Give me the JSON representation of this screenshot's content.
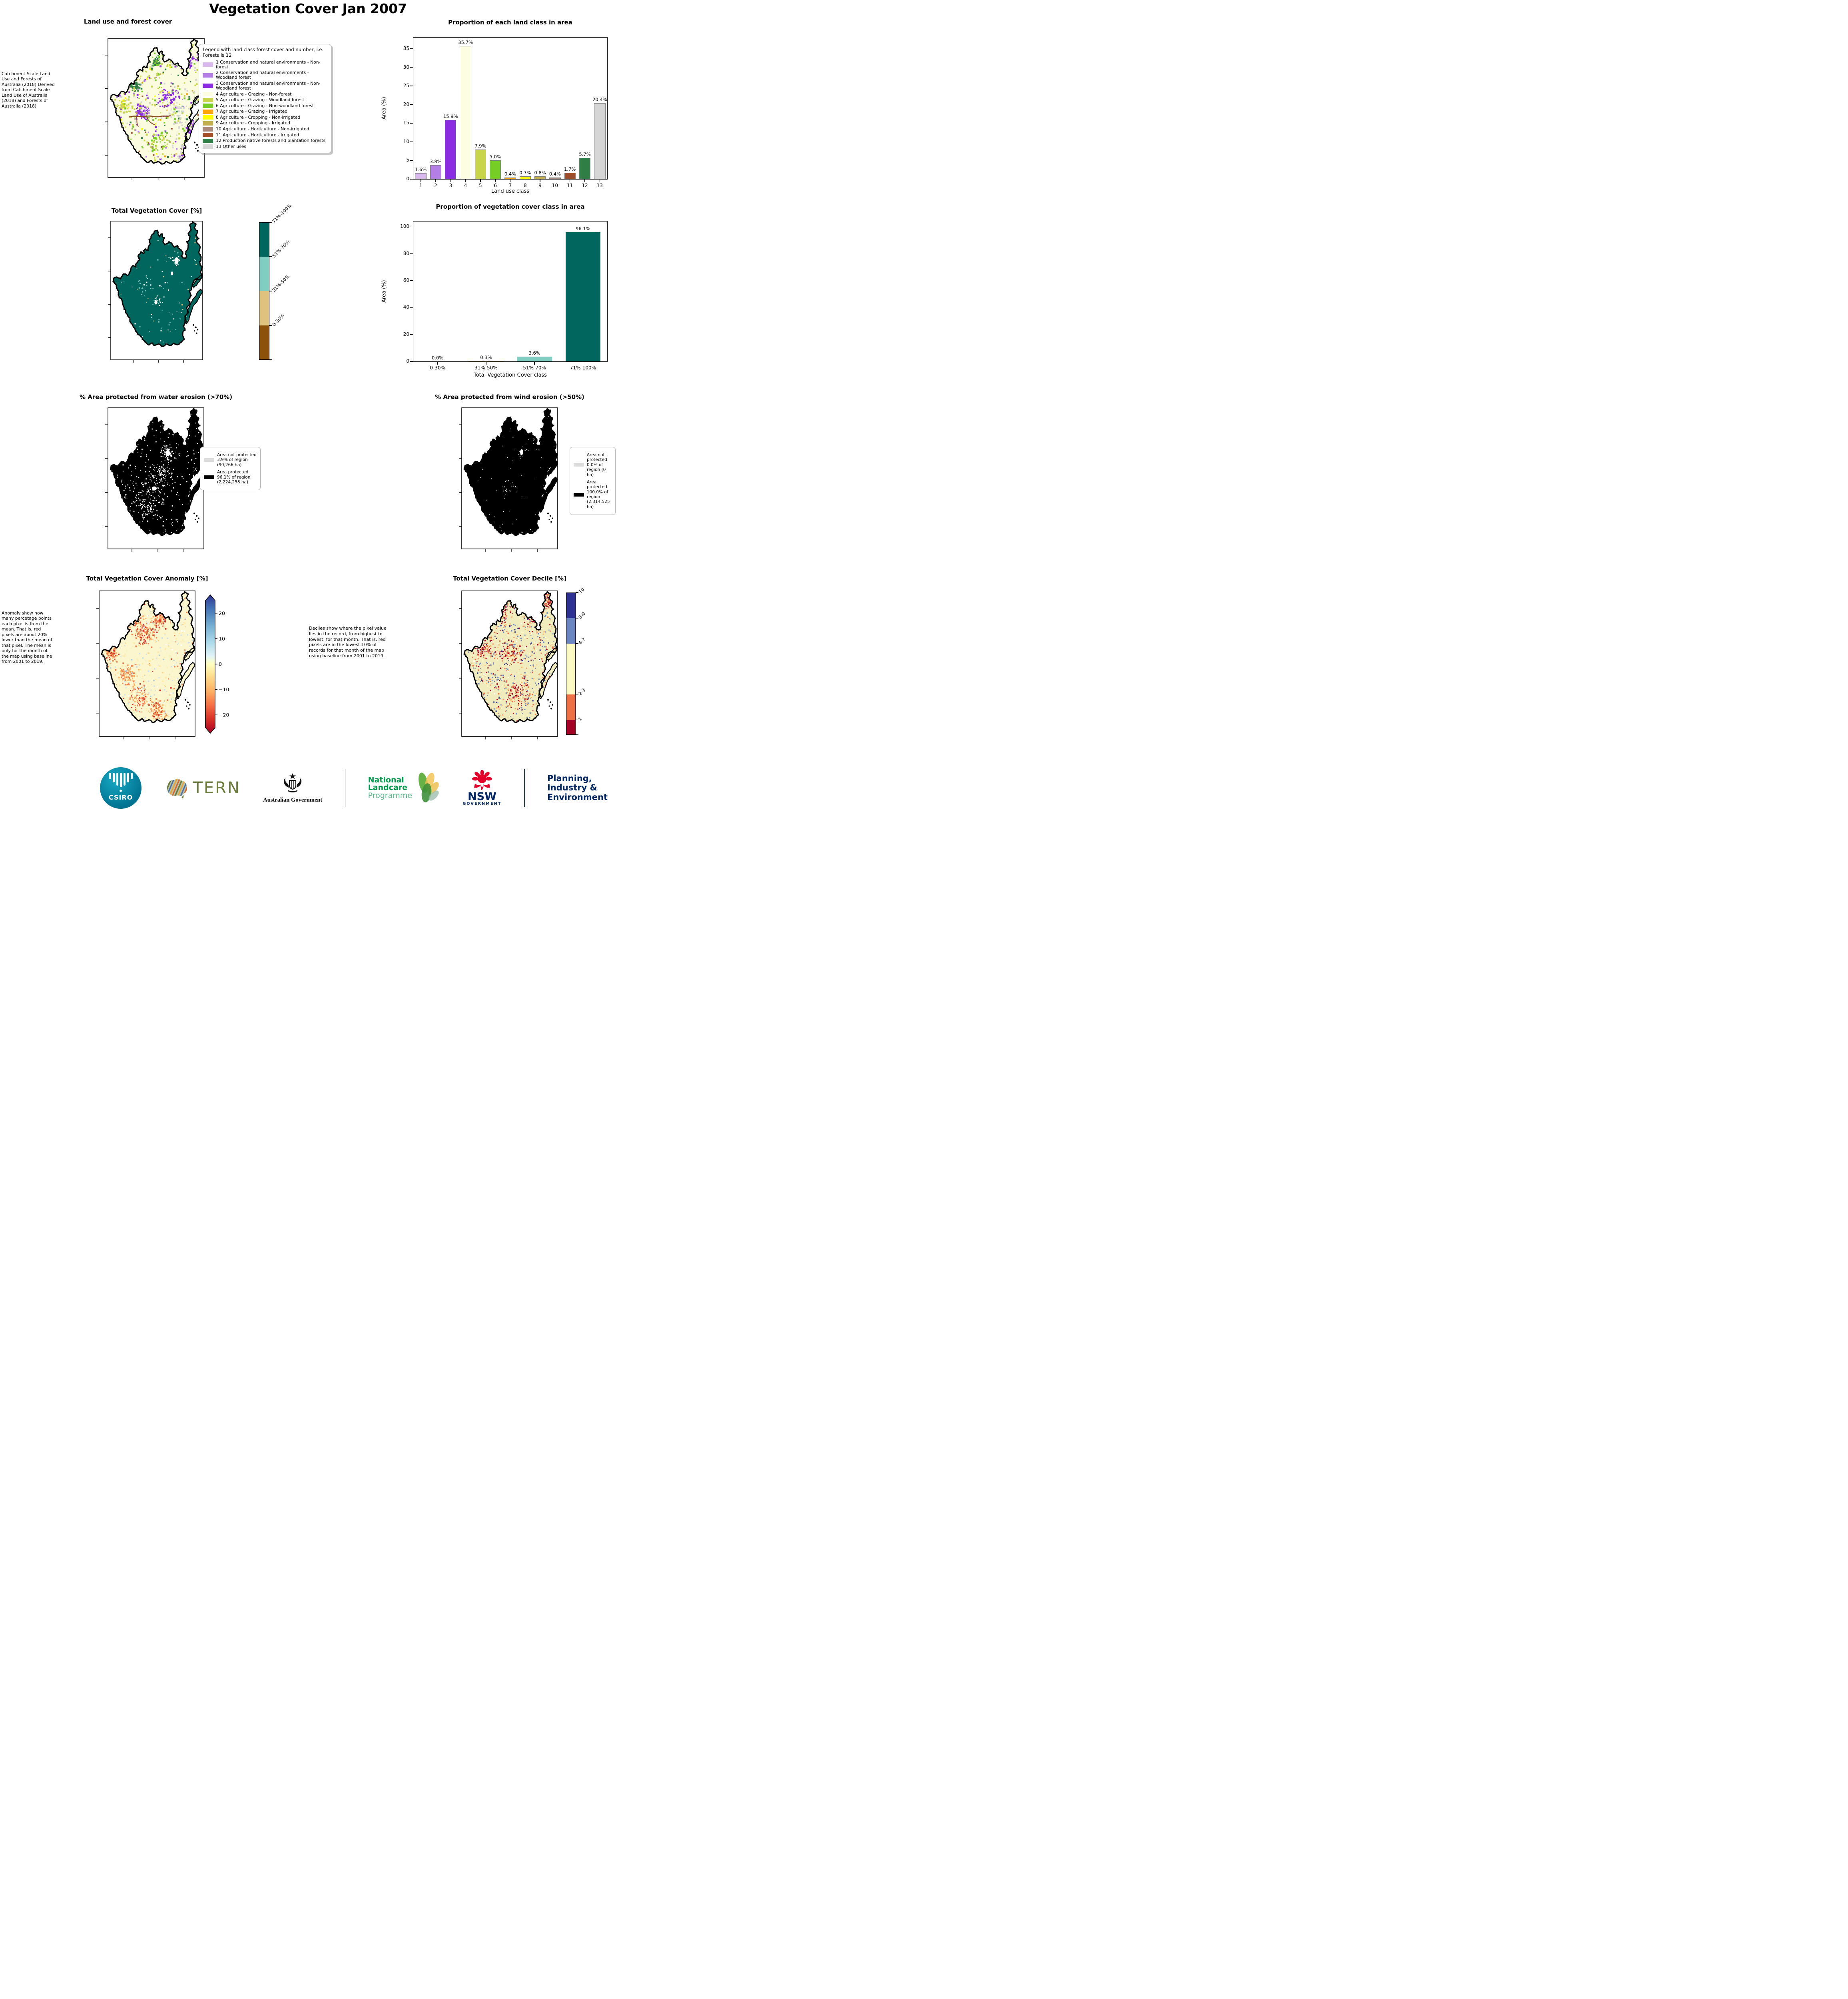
{
  "main_title": "Vegetation Cover Jan 2007",
  "chart_data": [
    {
      "type": "bar",
      "title": "Proportion of each land class in area",
      "xlabel": "Land use class",
      "ylabel": "Area (%)",
      "categories": [
        "1",
        "2",
        "3",
        "4",
        "5",
        "6",
        "7",
        "8",
        "9",
        "10",
        "11",
        "12",
        "13"
      ],
      "values": [
        1.6,
        3.8,
        15.9,
        35.7,
        7.9,
        5.0,
        0.4,
        0.7,
        0.8,
        0.4,
        1.7,
        5.7,
        20.4
      ],
      "labels": [
        "1.6%",
        "3.8%",
        "15.9%",
        "35.7%",
        "7.9%",
        "5.0%",
        "0.4%",
        "0.7%",
        "0.8%",
        "0.4%",
        "1.7%",
        "5.7%",
        "20.4%"
      ],
      "bar_colors": [
        "#d9b8f0",
        "#b57de6",
        "#8b2be2",
        "#fdfde1",
        "#c8d44a",
        "#76cd26",
        "#ffa500",
        "#ffff00",
        "#c3af4d",
        "#a98a7d",
        "#9e4f2a",
        "#2f7e45",
        "#d6d6d6"
      ],
      "ylim": [
        0,
        38
      ],
      "yticks": [
        0,
        5,
        10,
        15,
        20,
        25,
        30,
        35
      ],
      "grid": false,
      "legend_position": "none"
    },
    {
      "type": "bar",
      "title": "Proportion of vegetation cover class in area",
      "xlabel": "Total Vegetation Cover class",
      "ylabel": "Area (%)",
      "categories": [
        "0-30%",
        "31%-50%",
        "51%-70%",
        "71%-100%"
      ],
      "values": [
        0.0,
        0.3,
        3.6,
        96.1
      ],
      "labels": [
        "0.0%",
        "0.3%",
        "3.6%",
        "96.1%"
      ],
      "bar_colors": [
        "#8c510a",
        "#dfc27d",
        "#80cdc1",
        "#01665e"
      ],
      "ylim": [
        0,
        104
      ],
      "yticks": [
        0,
        20,
        40,
        60,
        80,
        100
      ],
      "grid": false,
      "legend_position": "none"
    }
  ],
  "land_use_panel": {
    "title": "Land use and forest cover",
    "annotation": " Catchment Scale Land Use and Forests of Australia (2018) Derived from Catchment Scale Land Use of Australia (2018) and Forests of Australia (2018)",
    "legend_title": "Legend with land class forest cover and number, i.e. Forests is 12",
    "classes": [
      {
        "label": "1 Conservation and natural environments - Non-forest",
        "color": "#d9b8f0"
      },
      {
        "label": "2 Conservation and natural environments - Woodland forest",
        "color": "#b57de6"
      },
      {
        "label": "3 Conservation and natural environments - Non-Woodland forest",
        "color": "#8b2be2"
      },
      {
        "label": "4 Agriculture - Grazing - Non-forest",
        "color": "#fdfde1"
      },
      {
        "label": "5 Agriculture - Grazing - Woodland forest",
        "color": "#c8d44a"
      },
      {
        "label": "6 Agriculture - Grazing - Non-woodland forest",
        "color": "#76cd26"
      },
      {
        "label": "7 Agriculture - Grazing - Irrigated",
        "color": "#ffa500"
      },
      {
        "label": "8 Agriculture - Cropping - Non-irrigated",
        "color": "#ffff00"
      },
      {
        "label": "9 Agriculture - Cropping - Irrigated",
        "color": "#c3af4d"
      },
      {
        "label": "10 Agriculture - Horticulture - Non-irrigated",
        "color": "#a98a7d"
      },
      {
        "label": "11 Agriculture - Horticulture - Irrigated",
        "color": "#9e4f2a"
      },
      {
        "label": "12 Production native forests and plantation forests",
        "color": "#2f7e45"
      },
      {
        "label": "13 Other uses",
        "color": "#d6d6d6"
      }
    ]
  },
  "veg_cover_panel": {
    "title": "Total Vegetation Cover [%]",
    "colorbar": [
      {
        "label": "71%-100%",
        "color": "#01665e"
      },
      {
        "label": "51%-70%",
        "color": "#80cdc1"
      },
      {
        "label": "31%-50%",
        "color": "#dfc27d"
      },
      {
        "label": "0-30%",
        "color": "#8c510a"
      }
    ]
  },
  "water_erosion_panel": {
    "title": "% Area protected from water erosion (>70%)",
    "legend": [
      {
        "swatch": "#dcdcdc",
        "label": "Area not protected 3.9% of region (90,266 ha)"
      },
      {
        "swatch": "#000000",
        "label": "Area protected 96.1% of region (2,224,258 ha)"
      }
    ]
  },
  "wind_erosion_panel": {
    "title": "% Area protected from wind erosion (>50%)",
    "legend": [
      {
        "swatch": "#dcdcdc",
        "label": "Area not protected 0.0% of region (0 ha)"
      },
      {
        "swatch": "#000000",
        "label": "Area protected 100.0% of region (2,314,525 ha)"
      }
    ]
  },
  "anomaly_panel": {
    "title": "Total Vegetation Cover Anomaly [%]",
    "annotation": "Anomaly show how many percetage points each pixel is from the mean. That is, red pixels are about 20% lower than the mean of that pixel. The mean is only for the month of the map using baseline from 2001 to 2019.",
    "colorbar_ticks": [
      "20",
      "10",
      "0",
      "−10",
      "−20"
    ]
  },
  "decile_panel": {
    "title": "Total Vegetation Cover Decile [%]",
    "annotation": "Deciles show where the pixel value lies in the record, from highest to lowest, for that month. That is, red pixels are in the lowest 10% of records for that month of the map using baseline from 2001 to 2019.",
    "colorbar": [
      {
        "label": "10",
        "color": "#2c3192",
        "frac": 0.18
      },
      {
        "label": "8-9",
        "color": "#6b86c0",
        "frac": 0.18
      },
      {
        "label": "4-7",
        "color": "#fdfbc3",
        "frac": 0.355
      },
      {
        "label": "2-3",
        "color": "#ed7144",
        "frac": 0.18
      },
      {
        "label": "1",
        "color": "#a50026",
        "frac": 0.105
      }
    ]
  },
  "logos": {
    "csiro_label": "CSIRO",
    "tern_label": "TERN",
    "aus_gov_label": "Australian Government",
    "landcare_line1": "National",
    "landcare_line2": "Landcare",
    "landcare_line3": "Programme",
    "nsw_label": "NSW",
    "nsw_sub": "GOVERNMENT",
    "planning_line1": "Planning,",
    "planning_line2": "Industry &",
    "planning_line3": "Environment"
  }
}
